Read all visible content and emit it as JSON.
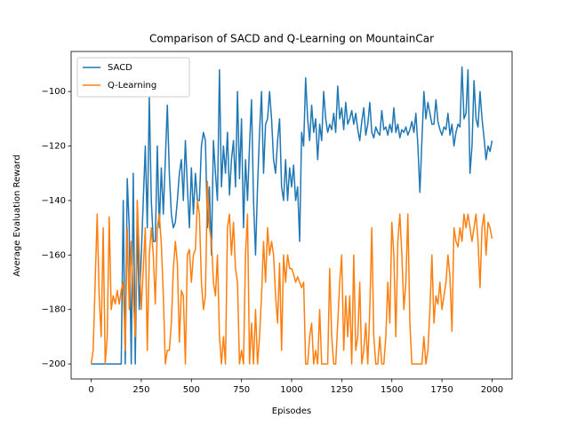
{
  "chart_data": {
    "type": "line",
    "title": "Comparison of SACD and Q-Learning on MountainCar",
    "x_label": "Episodes",
    "y_label": "Average Evaluation Reward",
    "xlim": [
      -100,
      2100
    ],
    "ylim": [
      -205.5,
      -85.3
    ],
    "xticks": [
      0,
      250,
      500,
      750,
      1000,
      1250,
      1500,
      1750,
      2000
    ],
    "yticks": [
      {
        "value": -200,
        "label": "−200"
      },
      {
        "value": -180,
        "label": "−180"
      },
      {
        "value": -160,
        "label": "−160"
      },
      {
        "value": -140,
        "label": "−140"
      },
      {
        "value": -120,
        "label": "−120"
      },
      {
        "value": -100,
        "label": "−100"
      }
    ],
    "legend": "upper left",
    "grid": false,
    "x": [
      0,
      10,
      20,
      30,
      40,
      50,
      60,
      70,
      80,
      90,
      100,
      110,
      120,
      130,
      140,
      150,
      160,
      170,
      180,
      190,
      200,
      210,
      220,
      230,
      240,
      250,
      260,
      270,
      280,
      290,
      300,
      310,
      320,
      330,
      340,
      350,
      360,
      370,
      380,
      390,
      400,
      410,
      420,
      430,
      440,
      450,
      460,
      470,
      480,
      490,
      500,
      510,
      520,
      530,
      540,
      550,
      560,
      570,
      580,
      590,
      600,
      610,
      620,
      630,
      640,
      650,
      660,
      670,
      680,
      690,
      700,
      710,
      720,
      730,
      740,
      750,
      760,
      770,
      780,
      790,
      800,
      810,
      820,
      830,
      840,
      850,
      860,
      870,
      880,
      890,
      900,
      910,
      920,
      930,
      940,
      950,
      960,
      970,
      980,
      990,
      1000,
      1010,
      1020,
      1030,
      1040,
      1050,
      1060,
      1070,
      1080,
      1090,
      1100,
      1110,
      1120,
      1130,
      1140,
      1150,
      1160,
      1170,
      1180,
      1190,
      1200,
      1210,
      1220,
      1230,
      1240,
      1250,
      1260,
      1270,
      1280,
      1290,
      1300,
      1310,
      1320,
      1330,
      1340,
      1350,
      1360,
      1370,
      1380,
      1390,
      1400,
      1410,
      1420,
      1430,
      1440,
      1450,
      1460,
      1470,
      1480,
      1490,
      1500,
      1510,
      1520,
      1530,
      1540,
      1550,
      1560,
      1570,
      1580,
      1590,
      1600,
      1610,
      1620,
      1630,
      1640,
      1650,
      1660,
      1670,
      1680,
      1690,
      1700,
      1710,
      1720,
      1730,
      1740,
      1750,
      1760,
      1770,
      1780,
      1790,
      1800,
      1810,
      1820,
      1830,
      1840,
      1850,
      1860,
      1870,
      1880,
      1890,
      1900,
      1910,
      1920,
      1930,
      1940,
      1950,
      1960,
      1970,
      1980,
      1990,
      2000
    ],
    "series": [
      {
        "name": "SACD",
        "color": "#1f77b4",
        "values": [
          -200,
          -200,
          -200,
          -200,
          -200,
          -200,
          -200,
          -200,
          -200,
          -200,
          -200,
          -200,
          -200,
          -200,
          -200,
          -200,
          -140,
          -200,
          -132,
          -150,
          -200,
          -130,
          -200,
          -148,
          -180,
          -160,
          -140,
          -120,
          -150,
          -102,
          -140,
          -155,
          -155,
          -120,
          -150,
          -128,
          -145,
          -125,
          -105,
          -130,
          -145,
          -150,
          -148,
          -140,
          -130,
          -125,
          -140,
          -118,
          -135,
          -150,
          -128,
          -145,
          -130,
          -140,
          -140,
          -120,
          -115,
          -118,
          -150,
          -135,
          -160,
          -118,
          -130,
          -140,
          -92,
          -135,
          -120,
          -130,
          -115,
          -138,
          -125,
          -118,
          -135,
          -100,
          -132,
          -110,
          -150,
          -125,
          -140,
          -120,
          -103,
          -140,
          -160,
          -135,
          -115,
          -100,
          -130,
          -112,
          -110,
          -100,
          -110,
          -125,
          -130,
          -118,
          -110,
          -135,
          -140,
          -125,
          -140,
          -128,
          -135,
          -127,
          -140,
          -135,
          -155,
          -115,
          -120,
          -95,
          -110,
          -118,
          -105,
          -115,
          -110,
          -125,
          -112,
          -118,
          -100,
          -110,
          -115,
          -112,
          -114,
          -108,
          -115,
          -98,
          -110,
          -106,
          -114,
          -104,
          -112,
          -110,
          -107,
          -112,
          -108,
          -114,
          -118,
          -111,
          -106,
          -116,
          -112,
          -104,
          -115,
          -117,
          -113,
          -115,
          -116,
          -107,
          -114,
          -113,
          -116,
          -112,
          -115,
          -106,
          -115,
          -112,
          -117,
          -114,
          -115,
          -113,
          -116,
          -114,
          -111,
          -115,
          -108,
          -120,
          -137,
          -118,
          -100,
          -110,
          -104,
          -108,
          -112,
          -112,
          -103,
          -111,
          -114,
          -116,
          -113,
          -114,
          -108,
          -116,
          -112,
          -120,
          -115,
          -112,
          -113,
          -91,
          -110,
          -108,
          -92,
          -130,
          -120,
          -96,
          -110,
          -113,
          -100,
          -110,
          -117,
          -125,
          -120,
          -122,
          -118
        ]
      },
      {
        "name": "Q-Learning",
        "color": "#ff7f0e",
        "values": [
          -200,
          -195,
          -170,
          -145,
          -175,
          -190,
          -150,
          -200,
          -190,
          -146,
          -180,
          -175,
          -178,
          -173,
          -178,
          -173,
          -170,
          -195,
          -150,
          -180,
          -155,
          -175,
          -190,
          -140,
          -160,
          -180,
          -165,
          -150,
          -195,
          -160,
          -150,
          -160,
          -178,
          -150,
          -145,
          -156,
          -175,
          -200,
          -195,
          -195,
          -185,
          -165,
          -155,
          -163,
          -192,
          -173,
          -175,
          -200,
          -160,
          -158,
          -170,
          -160,
          -158,
          -140,
          -145,
          -170,
          -180,
          -175,
          -133,
          -150,
          -155,
          -170,
          -175,
          -160,
          -190,
          -200,
          -190,
          -200,
          -150,
          -145,
          -160,
          -148,
          -165,
          -170,
          -200,
          -195,
          -200,
          -160,
          -145,
          -200,
          -185,
          -200,
          -180,
          -200,
          -190,
          -175,
          -155,
          -170,
          -150,
          -160,
          -155,
          -160,
          -175,
          -185,
          -163,
          -195,
          -160,
          -170,
          -160,
          -165,
          -165,
          -167,
          -170,
          -168,
          -170,
          -172,
          -170,
          -200,
          -200,
          -190,
          -185,
          -200,
          -195,
          -200,
          -180,
          -200,
          -200,
          -200,
          -200,
          -165,
          -190,
          -200,
          -200,
          -185,
          -170,
          -160,
          -195,
          -175,
          -190,
          -175,
          -200,
          -160,
          -195,
          -190,
          -170,
          -200,
          -195,
          -185,
          -200,
          -180,
          -150,
          -190,
          -200,
          -200,
          -190,
          -200,
          -200,
          -190,
          -170,
          -185,
          -148,
          -160,
          -190,
          -155,
          -145,
          -160,
          -180,
          -170,
          -145,
          -185,
          -200,
          -200,
          -200,
          -200,
          -200,
          -200,
          -190,
          -200,
          -195,
          -180,
          -160,
          -185,
          -175,
          -178,
          -170,
          -180,
          -175,
          -170,
          -160,
          -168,
          -188,
          -150,
          -155,
          -157,
          -150,
          -155,
          -145,
          -150,
          -145,
          -150,
          -155,
          -150,
          -145,
          -155,
          -172,
          -150,
          -145,
          -160,
          -148,
          -150,
          -154
        ]
      }
    ]
  }
}
